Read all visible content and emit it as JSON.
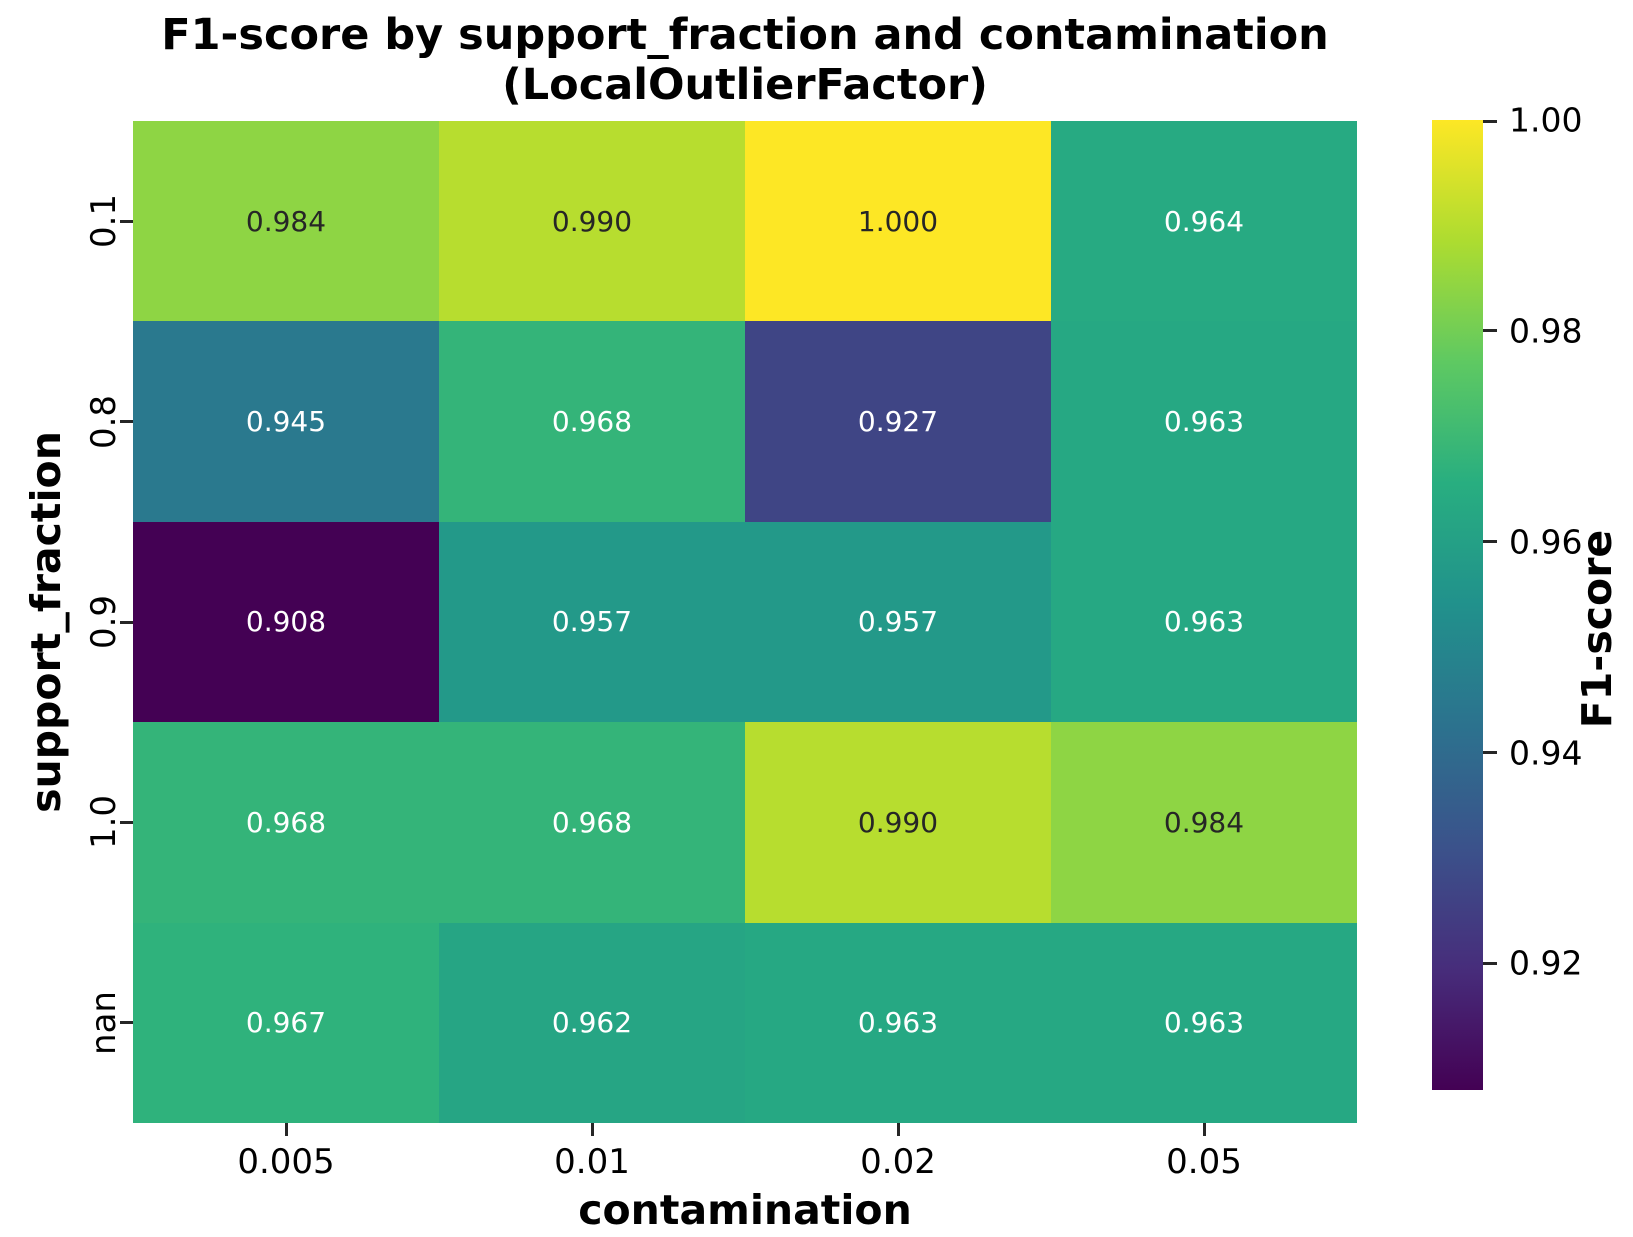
{
  "chart_data": {
    "type": "heatmap",
    "title_line1": "F1-score by support_fraction and contamination",
    "title_line2": "(LocalOutlierFactor)",
    "xlabel": "contamination",
    "ylabel": "support_fraction",
    "x_categories": [
      "0.005",
      "0.01",
      "0.02",
      "0.05"
    ],
    "y_categories": [
      "0.1",
      "0.8",
      "0.9",
      "1.0",
      "nan"
    ],
    "values": [
      [
        0.984,
        0.99,
        1.0,
        0.964
      ],
      [
        0.945,
        0.968,
        0.927,
        0.963
      ],
      [
        0.908,
        0.957,
        0.957,
        0.963
      ],
      [
        0.968,
        0.968,
        0.99,
        0.984
      ],
      [
        0.967,
        0.962,
        0.963,
        0.963
      ]
    ],
    "annotation_decimals": 3,
    "colormap": "viridis",
    "colormap_stops": [
      [
        0.0,
        "#440154"
      ],
      [
        0.125,
        "#472d7b"
      ],
      [
        0.25,
        "#3b528b"
      ],
      [
        0.375,
        "#2c728e"
      ],
      [
        0.5,
        "#21918c"
      ],
      [
        0.625,
        "#28ae80"
      ],
      [
        0.75,
        "#5ec962"
      ],
      [
        0.875,
        "#addc30"
      ],
      [
        1.0,
        "#fde725"
      ]
    ],
    "vmin": 0.908,
    "vmax": 1.0,
    "colorbar": {
      "label": "F1-score",
      "tick_labels": [
        "1.00",
        "0.98",
        "0.96",
        "0.94",
        "0.92"
      ],
      "tick_values": [
        1.0,
        0.98,
        0.96,
        0.94,
        0.92
      ]
    },
    "annotation_colors": {
      "dark": "#262626",
      "light": "#ffffff"
    },
    "tick_color": "#262626",
    "background": "#ffffff",
    "legend_position": "right",
    "grid": false
  }
}
